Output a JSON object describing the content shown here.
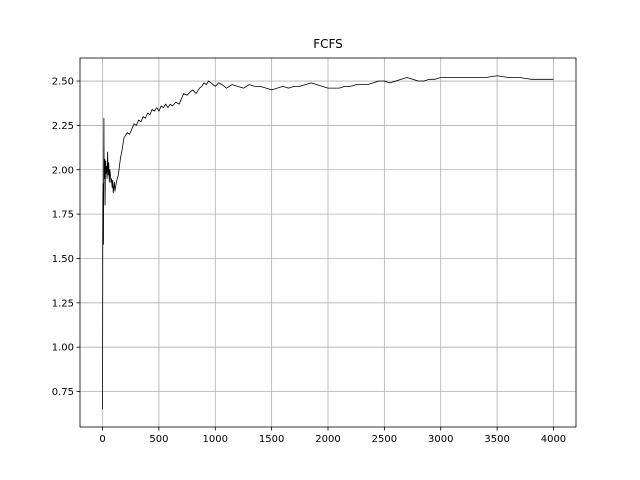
{
  "chart_data": {
    "type": "line",
    "title": "FCFS",
    "xlabel": "",
    "ylabel": "",
    "xlim": [
      -200,
      4200
    ],
    "ylim": [
      0.55,
      2.63
    ],
    "grid": true,
    "x_ticks": [
      0,
      500,
      1000,
      1500,
      2000,
      2500,
      3000,
      3500,
      4000
    ],
    "x_tick_labels": [
      "0",
      "500",
      "1000",
      "1500",
      "2000",
      "2500",
      "3000",
      "3500",
      "4000"
    ],
    "y_ticks": [
      0.75,
      1.0,
      1.25,
      1.5,
      1.75,
      2.0,
      2.25,
      2.5
    ],
    "y_tick_labels": [
      "0.75",
      "1.00",
      "1.25",
      "1.50",
      "1.75",
      "2.00",
      "2.25",
      "2.50"
    ],
    "series": [
      {
        "color": "#000000",
        "x": [
          0,
          2,
          4,
          6,
          8,
          10,
          12,
          14,
          16,
          18,
          20,
          22,
          25,
          28,
          32,
          36,
          40,
          45,
          50,
          55,
          60,
          65,
          70,
          75,
          80,
          85,
          90,
          95,
          100,
          105,
          110,
          120,
          130,
          140,
          150,
          160,
          170,
          180,
          190,
          200,
          220,
          240,
          260,
          280,
          300,
          320,
          340,
          360,
          380,
          400,
          420,
          440,
          460,
          480,
          500,
          520,
          540,
          560,
          580,
          600,
          620,
          650,
          680,
          700,
          720,
          750,
          780,
          800,
          830,
          860,
          880,
          900,
          920,
          940,
          960,
          980,
          1000,
          1030,
          1060,
          1100,
          1150,
          1200,
          1250,
          1300,
          1350,
          1400,
          1450,
          1500,
          1550,
          1600,
          1650,
          1700,
          1750,
          1800,
          1850,
          1900,
          1950,
          2000,
          2050,
          2100,
          2150,
          2200,
          2250,
          2300,
          2350,
          2400,
          2450,
          2500,
          2550,
          2600,
          2650,
          2700,
          2750,
          2800,
          2850,
          2900,
          2950,
          3000,
          3100,
          3200,
          3300,
          3400,
          3500,
          3600,
          3700,
          3800,
          3900,
          4000
        ],
        "y": [
          0.65,
          1.6,
          1.85,
          1.92,
          1.58,
          2.0,
          2.29,
          1.95,
          2.03,
          1.97,
          2.06,
          1.8,
          1.96,
          2.05,
          1.98,
          2.02,
          1.95,
          2.1,
          1.97,
          2.04,
          1.93,
          2.0,
          1.97,
          1.93,
          1.95,
          1.9,
          1.94,
          1.87,
          1.9,
          1.93,
          1.88,
          1.92,
          1.95,
          1.97,
          2.02,
          2.07,
          2.1,
          2.14,
          2.18,
          2.19,
          2.21,
          2.2,
          2.23,
          2.26,
          2.25,
          2.28,
          2.27,
          2.3,
          2.29,
          2.32,
          2.31,
          2.34,
          2.33,
          2.35,
          2.33,
          2.36,
          2.35,
          2.37,
          2.35,
          2.37,
          2.36,
          2.38,
          2.37,
          2.4,
          2.43,
          2.42,
          2.44,
          2.45,
          2.43,
          2.46,
          2.47,
          2.49,
          2.48,
          2.5,
          2.49,
          2.48,
          2.47,
          2.49,
          2.48,
          2.46,
          2.48,
          2.47,
          2.46,
          2.48,
          2.47,
          2.47,
          2.46,
          2.45,
          2.46,
          2.47,
          2.46,
          2.47,
          2.47,
          2.48,
          2.49,
          2.48,
          2.47,
          2.46,
          2.46,
          2.46,
          2.47,
          2.47,
          2.48,
          2.48,
          2.48,
          2.49,
          2.5,
          2.5,
          2.49,
          2.5,
          2.51,
          2.52,
          2.51,
          2.5,
          2.5,
          2.51,
          2.51,
          2.52,
          2.52,
          2.52,
          2.52,
          2.52,
          2.53,
          2.52,
          2.52,
          2.51,
          2.51,
          2.51
        ]
      }
    ]
  }
}
